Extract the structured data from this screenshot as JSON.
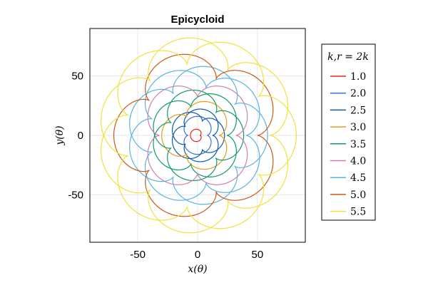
{
  "chart_data": {
    "type": "line",
    "title": "Epicycloid",
    "xlabel": "x(θ)",
    "ylabel": "y(θ)",
    "xlim": [
      -90,
      90
    ],
    "ylim": [
      -90,
      90
    ],
    "xticks": [
      -50,
      0,
      50
    ],
    "yticks": [
      -50,
      0,
      50
    ],
    "xtick_labels": [
      "-50",
      "0",
      "50"
    ],
    "ytick_labels": [
      "-50",
      "0",
      "50"
    ],
    "grid": true,
    "legend": {
      "title": "k,r = 2k",
      "position": "right"
    },
    "series": [
      {
        "name": "1.0",
        "k": 1.0,
        "r": 2.0,
        "color": "#e8271b"
      },
      {
        "name": "2.0",
        "k": 2.0,
        "r": 4.0,
        "color": "#3d6fe0"
      },
      {
        "name": "2.5",
        "k": 2.5,
        "r": 5.0,
        "color": "#0c5ba8"
      },
      {
        "name": "3.0",
        "k": 3.0,
        "r": 6.0,
        "color": "#e39d1a"
      },
      {
        "name": "3.5",
        "k": 3.5,
        "r": 7.0,
        "color": "#0f9a6a"
      },
      {
        "name": "4.0",
        "k": 4.0,
        "r": 8.0,
        "color": "#d07eb0"
      },
      {
        "name": "4.5",
        "k": 4.5,
        "r": 9.0,
        "color": "#5ab3e0"
      },
      {
        "name": "5.0",
        "k": 5.0,
        "r": 10.0,
        "color": "#cc5a12"
      },
      {
        "name": "5.5",
        "k": 5.5,
        "r": 11.0,
        "color": "#f0e23a"
      }
    ]
  }
}
